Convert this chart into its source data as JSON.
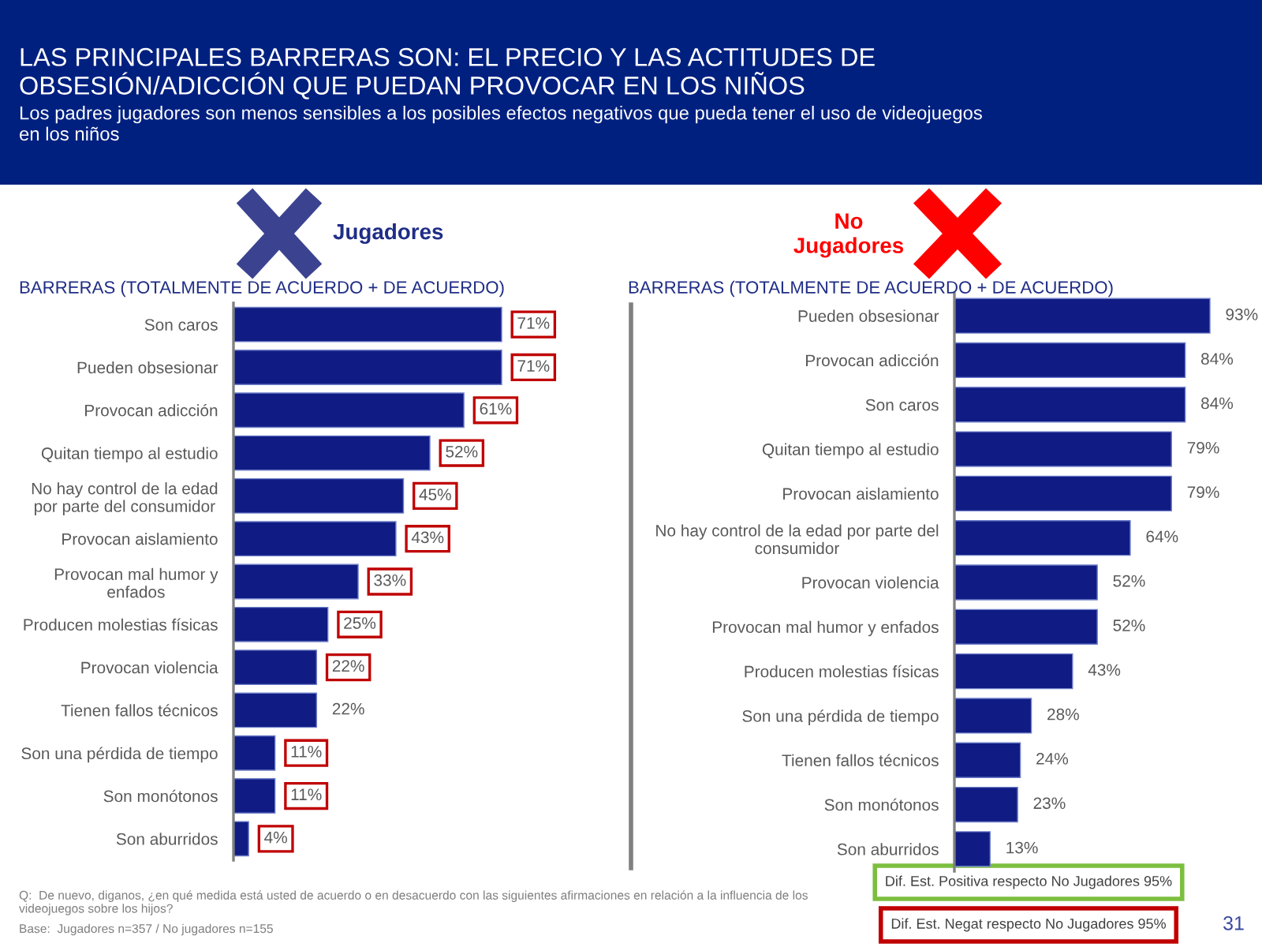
{
  "chart_data": [
    {
      "type": "other",
      "title": "LAS PRINCIPALES BARRERAS SON: EL PRECIO Y LAS ACTITUDES DE\nOBSESIÓN/ADICCIÓN QUE PUEDAN PROVOCAR EN LOS NIÑOS",
      "subtitle": "Los padres jugadores son menos sensibles a los posibles efectos negativos que pueda tener el uso de videojuegos\nen los niños",
      "annotations": [
        "Q:  De nuevo, diganos, ¿en qué medida está usted de acuerdo o en desacuerdo con las siguientes afirmaciones en relación a la influencia de los\nvideojuegos sobre los hijos?",
        "Base:  Jugadores n=357 / No jugadores n=155",
        "Dif. Est. Positiva respecto No Jugadores 95%",
        "Dif. Est. Negat respecto No Jugadores 95%",
        "31"
      ]
    },
    {
      "type": "bar",
      "orientation": "horizontal",
      "title": "Jugadores",
      "subtitle": "BARRERAS (TOTALMENTE DE ACUERDO + DE ACUERDO)",
      "tick_labels": "y",
      "color": "#101c84",
      "categories": [
        "Son caros",
        "Pueden obsesionar",
        "Provocan adicción",
        "Quitan tiempo al estudio",
        "No hay control de la edad\npor parte del consumidor",
        "Provocan aislamiento",
        "Provocan mal humor y\nenfados",
        "Producen molestias físicas",
        "Provocan violencia",
        "Tienen fallos técnicos",
        "Son una pérdida de tiempo",
        "Son monótonos",
        "Son aburridos"
      ],
      "values": [
        71,
        71,
        61,
        52,
        45,
        43,
        33,
        25,
        22,
        22,
        11,
        11,
        4
      ],
      "value_labels": [
        null,
        null,
        null,
        null,
        null,
        null,
        null,
        null,
        null,
        "22%",
        null,
        null,
        null
      ],
      "annotations": [
        {
          "text": "71%",
          "x": 71,
          "y": "Son caros"
        },
        {
          "text": "71%",
          "x": 71,
          "y": "Pueden obsesionar"
        },
        {
          "text": "61%",
          "x": 61,
          "y": "Provocan adicción"
        },
        {
          "text": "52%",
          "x": 52,
          "y": "Quitan tiempo al estudio"
        },
        {
          "text": "45%",
          "x": 45,
          "y": "No hay control de la edad\npor parte del consumidor"
        },
        {
          "text": "43%",
          "x": 43,
          "y": "Provocan aislamiento"
        },
        {
          "text": "33%",
          "x": 33,
          "y": "Provocan mal humor y\nenfados"
        },
        {
          "text": "25%",
          "x": 25,
          "y": "Producen molestias físicas"
        },
        {
          "text": "22%",
          "x": 22,
          "y": "Provocan violencia"
        },
        {
          "text": "11%",
          "x": 11,
          "y": "Son una pérdida de tiempo"
        },
        {
          "text": "11%",
          "x": 11,
          "y": "Son monótonos"
        },
        {
          "text": "4%",
          "x": 4,
          "y": "Son aburridos"
        }
      ]
    },
    {
      "type": "bar",
      "orientation": "horizontal",
      "title": "No\nJugadores",
      "subtitle": "BARRERAS (TOTALMENTE DE ACUERDO + DE ACUERDO)",
      "tick_labels": "y",
      "color": "#101c84",
      "categories": [
        "Pueden obsesionar",
        "Provocan adicción",
        "Son caros",
        "Quitan tiempo al estudio",
        "Provocan aislamiento",
        "No hay control de la edad por parte del\nconsumidor",
        "Provocan violencia",
        "Provocan mal humor y enfados",
        "Producen molestias físicas",
        "Son una pérdida de tiempo",
        "Tienen fallos técnicos",
        "Son monótonos",
        "Son aburridos"
      ],
      "values": [
        93,
        84,
        84,
        79,
        79,
        64,
        52,
        52,
        43,
        28,
        24,
        23,
        13
      ],
      "value_labels": [
        "93%",
        "84%",
        "84%",
        "79%",
        "79%",
        "64%",
        "52%",
        "52%",
        "43%",
        "28%",
        "24%",
        "23%",
        "13%"
      ]
    }
  ]
}
